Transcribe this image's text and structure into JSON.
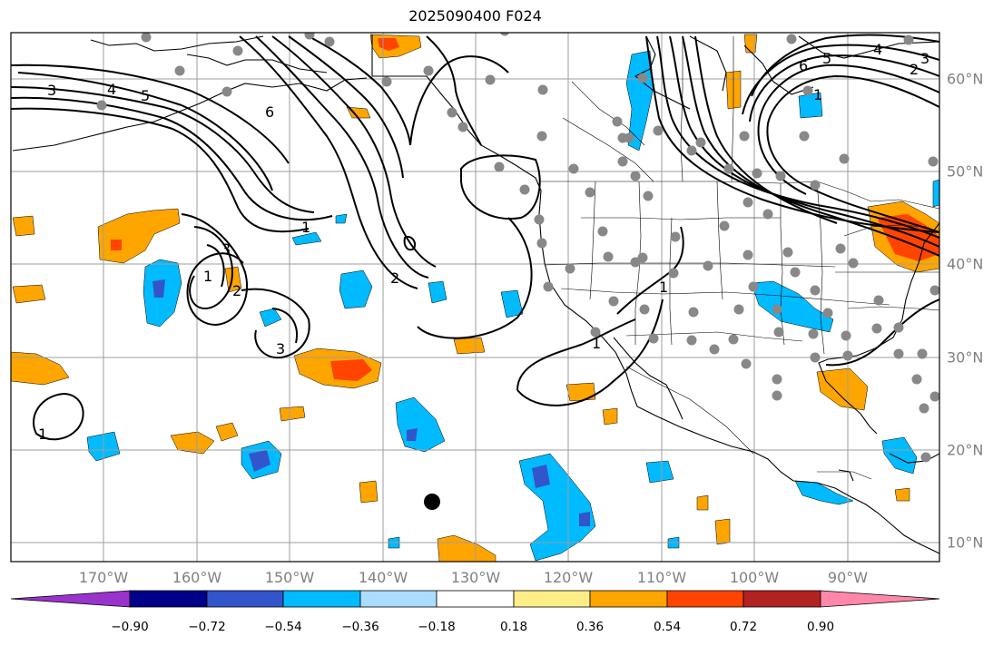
{
  "title": "2025090400 F024",
  "map": {
    "region": "North Pacific and North America",
    "lon_labels": [
      "170°W",
      "160°W",
      "150°W",
      "140°W",
      "130°W",
      "120°W",
      "110°W",
      "100°W",
      "90°W"
    ],
    "lat_labels": [
      "60°N",
      "50°N",
      "40°N",
      "30°N",
      "20°N",
      "10°N"
    ],
    "contour_labels": [
      "3",
      "4",
      "5",
      "6",
      "1",
      "2",
      "3",
      "1",
      "2",
      "3",
      "1",
      "1",
      "1",
      "2",
      "4",
      "5",
      "6",
      "3",
      "1"
    ],
    "colors": {
      "ocean": "#ffffff",
      "land": "#ffffff",
      "coast": "#000000",
      "grid": "#9e9e9e",
      "contour": "#000000",
      "station": "#888888",
      "marker": "#000000"
    }
  },
  "colorbar": {
    "levels": [
      "−0.90",
      "−0.72",
      "−0.54",
      "−0.36",
      "−0.18",
      "0.18",
      "0.36",
      "0.54",
      "0.72",
      "0.90"
    ],
    "colors": [
      "#9933cc",
      "#000088",
      "#3355cc",
      "#00bbff",
      "#aaddff",
      "#ffffff",
      "#ffee88",
      "#ffa500",
      "#ff4400",
      "#b22222",
      "#ff88aa"
    ]
  }
}
